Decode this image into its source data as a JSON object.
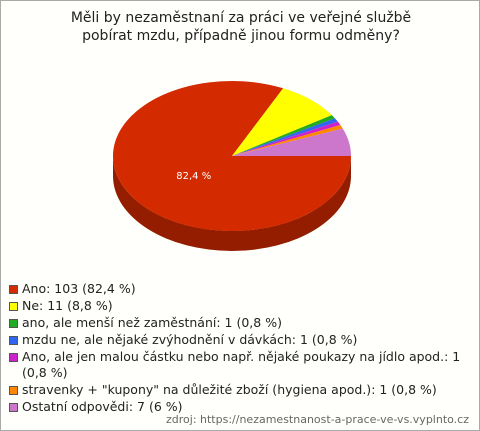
{
  "chart_data": {
    "type": "pie",
    "title": "Měli by nezaměstnaní za práci ve veřejné službě pobírat mzdu, případně jinou formu odměny?",
    "categories": [
      "Ano: 103 (82,4 %)",
      "Ne: 11 (8,8 %)",
      "ano, ale menší než zaměstnání: 1 (0,8 %)",
      "mzdu ne, ale nějaké zvýhodnění v dávkách: 1 (0,8 %)",
      "Ano, ale jen malou částku nebo např. nějaké poukazy na jídlo apod.: 1 (0,8 %)",
      "stravenky + \"kupony\" na důležité zboží (hygiena apod.): 1 (0,8 %)",
      "Ostatní odpovědi: 7 (6 %)"
    ],
    "values": [
      82.4,
      8.8,
      0.8,
      0.8,
      0.8,
      0.8,
      6
    ],
    "value_labels": [
      "82,4 %",
      null,
      null,
      null,
      null,
      null,
      null
    ],
    "colors": [
      "#d42a00",
      "#ffff00",
      "#22aa22",
      "#3366ee",
      "#cc22cc",
      "#ff8800",
      "#cc77cc"
    ],
    "source": "zdroj: https://nezamestnanost-a-prace-ve-vs.vyplnto.cz"
  }
}
